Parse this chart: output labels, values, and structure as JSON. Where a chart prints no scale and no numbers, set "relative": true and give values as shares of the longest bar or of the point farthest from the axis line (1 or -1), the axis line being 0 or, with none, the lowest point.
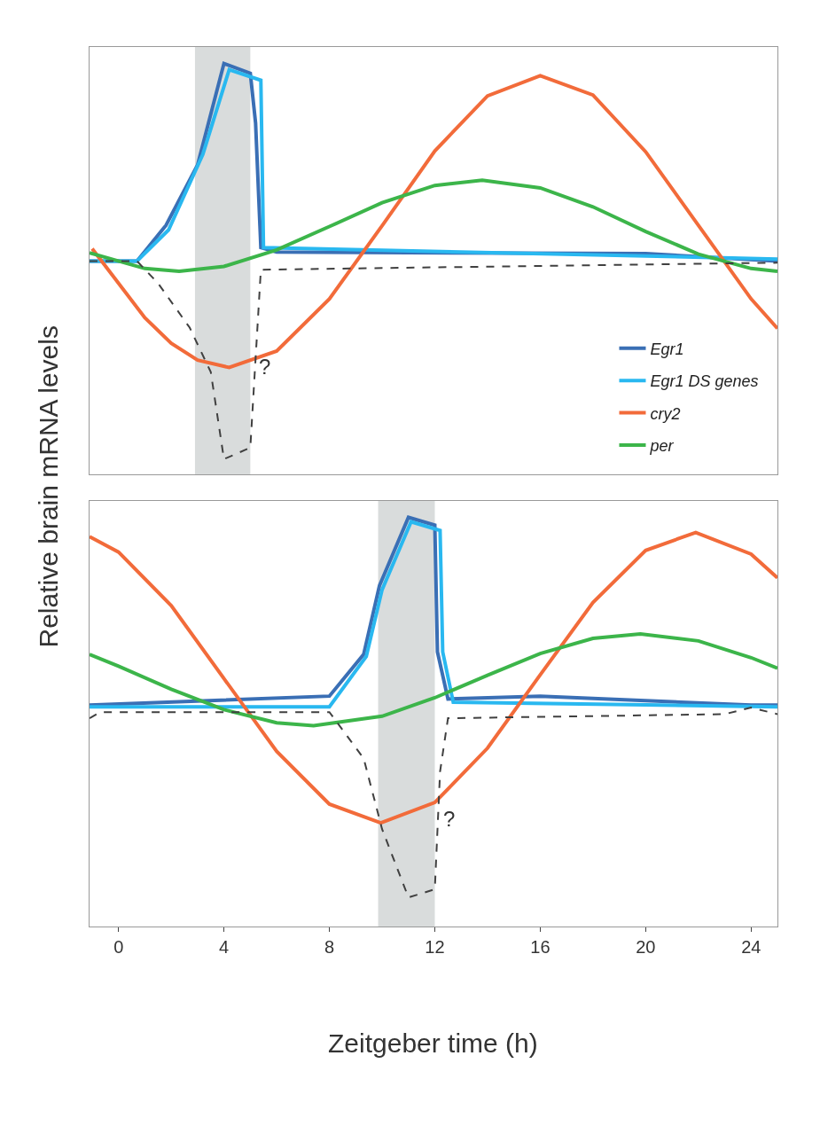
{
  "chart_data": [
    {
      "type": "line",
      "relative": true,
      "ylabel": "Relative brain mRNA levels",
      "xlim": [
        -1.1,
        25
      ],
      "tick_labels": false,
      "grid": false,
      "legend": "bottom right",
      "marker": "none",
      "bands": [
        {
          "axis": "x",
          "from": 2.9,
          "to": 5.0,
          "color": "#d9dcdc"
        }
      ],
      "annotations": [
        "?"
      ],
      "series": [
        {
          "name": "Egr1",
          "color": "#3a6fb5",
          "x": [
            -1.1,
            0.7,
            1.8,
            3,
            4,
            5,
            5.2,
            5.4,
            6,
            20,
            25
          ],
          "values": [
            0.519,
            0.519,
            0.606,
            0.753,
            1.0,
            0.976,
            0.855,
            0.552,
            0.541,
            0.537,
            0.519
          ]
        },
        {
          "name": "Egr1 DS genes",
          "color": "#29b8f0",
          "x": [
            -1.1,
            0.7,
            1.9,
            3.2,
            4.2,
            5.4,
            5.5,
            25
          ],
          "values": [
            0.519,
            0.519,
            0.595,
            0.779,
            0.985,
            0.959,
            0.552,
            0.524
          ]
        },
        {
          "name": "cry2",
          "color": "#f26b3a",
          "x": [
            -1,
            1,
            2,
            3,
            4.2,
            6,
            8,
            10,
            12,
            14,
            16,
            18,
            20,
            22,
            24,
            25
          ],
          "values": [
            0.549,
            0.381,
            0.319,
            0.278,
            0.26,
            0.3,
            0.427,
            0.605,
            0.787,
            0.921,
            0.97,
            0.923,
            0.785,
            0.606,
            0.427,
            0.355
          ]
        },
        {
          "name": "per",
          "color": "#3cb54a",
          "x": [
            -1.1,
            1,
            2.3,
            4,
            6,
            8,
            10,
            12,
            13.8,
            16,
            18,
            20,
            22,
            24,
            25
          ],
          "values": [
            0.539,
            0.501,
            0.494,
            0.506,
            0.546,
            0.603,
            0.661,
            0.703,
            0.716,
            0.697,
            0.651,
            0.591,
            0.536,
            0.501,
            0.494
          ]
        },
        {
          "color": "#404040",
          "line_style": "dashed",
          "x": [
            -1.1,
            0.7,
            1.5,
            2.7,
            3.5,
            4,
            5,
            5.4,
            25
          ],
          "values": [
            0.519,
            0.519,
            0.465,
            0.357,
            0.249,
            0.037,
            0.065,
            0.498,
            0.515
          ]
        }
      ]
    },
    {
      "type": "line",
      "relative": true,
      "xlabel": "Zeitgeber time (h)",
      "xlim": [
        -1.1,
        25
      ],
      "xticks": [
        0,
        4,
        8,
        12,
        16,
        20,
        24
      ],
      "tick_labels": "x",
      "grid": false,
      "legend": false,
      "marker": "none",
      "bands": [
        {
          "axis": "x",
          "from": 9.85,
          "to": 12.0,
          "color": "#d9dcdc"
        }
      ],
      "annotations": [
        "?"
      ],
      "series": [
        {
          "color": "#3a6fb5",
          "x": [
            -1.1,
            8,
            9.3,
            9.9,
            11,
            12,
            12.1,
            12.5,
            16,
            24,
            25
          ],
          "values": [
            0.541,
            0.563,
            0.665,
            0.833,
            1.0,
            0.981,
            0.671,
            0.556,
            0.563,
            0.541,
            0.541
          ]
        },
        {
          "color": "#29b8f0",
          "x": [
            -1.1,
            8,
            9.4,
            10,
            11.1,
            12.2,
            12.3,
            12.7,
            25
          ],
          "values": [
            0.537,
            0.537,
            0.66,
            0.823,
            0.989,
            0.968,
            0.671,
            0.548,
            0.537
          ]
        },
        {
          "color": "#f26b3a",
          "x": [
            -1.1,
            0,
            2,
            4,
            6,
            8,
            9.95,
            12,
            14,
            16,
            18,
            20,
            21.9,
            24,
            25
          ],
          "values": [
            0.953,
            0.915,
            0.784,
            0.606,
            0.428,
            0.299,
            0.253,
            0.303,
            0.436,
            0.615,
            0.792,
            0.919,
            0.963,
            0.91,
            0.852
          ]
        },
        {
          "color": "#3cb54a",
          "x": [
            -1.1,
            0,
            2,
            4,
            6,
            7.4,
            10,
            12,
            14,
            16,
            18,
            19.8,
            22,
            24,
            25
          ],
          "values": [
            0.665,
            0.636,
            0.58,
            0.53,
            0.498,
            0.491,
            0.514,
            0.559,
            0.614,
            0.667,
            0.704,
            0.715,
            0.698,
            0.657,
            0.631
          ]
        },
        {
          "color": "#404040",
          "line_style": "dashed",
          "x": [
            -1.1,
            -0.7,
            8,
            9.3,
            10,
            11,
            12,
            12.2,
            12.5,
            23,
            24,
            25
          ],
          "values": [
            0.509,
            0.524,
            0.524,
            0.411,
            0.238,
            0.071,
            0.091,
            0.379,
            0.509,
            0.519,
            0.535,
            0.519
          ]
        }
      ]
    }
  ]
}
